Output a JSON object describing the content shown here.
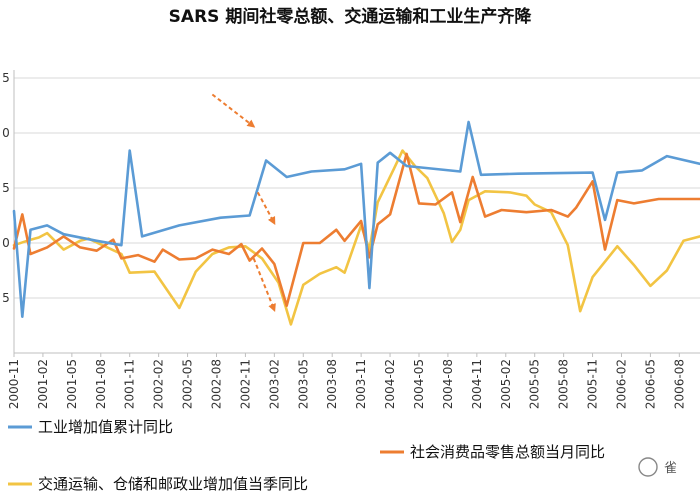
{
  "chart_data": {
    "type": "line",
    "title": "SARS 期间社零总额、交通运输和工业生产齐降",
    "x_tick_labels": [
      "2000-11",
      "2001-02",
      "2001-05",
      "2001-08",
      "2001-11",
      "2002-02",
      "2002-05",
      "2002-08",
      "2002-11",
      "2003-02",
      "2003-05",
      "2003-08",
      "2003-11",
      "2004-02",
      "2004-05",
      "2004-08",
      "2004-11",
      "2005-02",
      "2005-05",
      "2005-08",
      "2005-11",
      "2006-02",
      "2006-05",
      "2006-08"
    ],
    "y_tick_labels": [
      "",
      "5",
      "0",
      "5",
      "0",
      "5"
    ],
    "ylim": [
      0,
      25
    ],
    "grid": true,
    "series": [
      {
        "name": "工业增加值累计同比",
        "color": "#5b9bd5",
        "values": [
          [
            0,
            12.9
          ],
          [
            2,
            3.3
          ],
          [
            4,
            11.2
          ],
          [
            8,
            11.6
          ],
          [
            12,
            10.8
          ],
          [
            20,
            10.2
          ],
          [
            26,
            9.8
          ],
          [
            28,
            18.4
          ],
          [
            31,
            10.6
          ],
          [
            40,
            11.6
          ],
          [
            50,
            12.3
          ],
          [
            57,
            12.5
          ],
          [
            61,
            17.5
          ],
          [
            66,
            16.0
          ],
          [
            72,
            16.5
          ],
          [
            80,
            16.7
          ],
          [
            84,
            17.2
          ],
          [
            86,
            5.9
          ],
          [
            88,
            17.3
          ],
          [
            91,
            18.2
          ],
          [
            95,
            17.0
          ],
          [
            108,
            16.5
          ],
          [
            110,
            21.0
          ],
          [
            113,
            16.2
          ],
          [
            122,
            16.3
          ],
          [
            140,
            16.4
          ],
          [
            143,
            12.1
          ],
          [
            146,
            16.4
          ],
          [
            152,
            16.6
          ],
          [
            158,
            17.9
          ],
          [
            166,
            17.2
          ]
        ]
      },
      {
        "name": "社会消费品零售总额当月同比",
        "color": "#ed7d31",
        "values": [
          [
            0,
            9.5
          ],
          [
            2,
            12.6
          ],
          [
            4,
            9.0
          ],
          [
            8,
            9.6
          ],
          [
            12,
            10.6
          ],
          [
            16,
            9.6
          ],
          [
            20,
            9.3
          ],
          [
            24,
            10.3
          ],
          [
            26,
            8.6
          ],
          [
            30,
            8.9
          ],
          [
            34,
            8.3
          ],
          [
            36,
            9.4
          ],
          [
            40,
            8.5
          ],
          [
            44,
            8.6
          ],
          [
            48,
            9.4
          ],
          [
            52,
            9.0
          ],
          [
            55,
            9.9
          ],
          [
            57,
            8.4
          ],
          [
            60,
            9.5
          ],
          [
            63,
            8.1
          ],
          [
            66,
            4.3
          ],
          [
            70,
            10.0
          ],
          [
            74,
            10.0
          ],
          [
            78,
            11.2
          ],
          [
            80,
            10.2
          ],
          [
            84,
            12.0
          ],
          [
            86,
            8.7
          ],
          [
            88,
            11.7
          ],
          [
            91,
            12.6
          ],
          [
            95,
            18.1
          ],
          [
            98,
            13.6
          ],
          [
            102,
            13.5
          ],
          [
            106,
            14.6
          ],
          [
            108,
            11.9
          ],
          [
            111,
            16.0
          ],
          [
            114,
            12.4
          ],
          [
            118,
            13.0
          ],
          [
            124,
            12.8
          ],
          [
            130,
            13.0
          ],
          [
            134,
            12.4
          ],
          [
            136,
            13.2
          ],
          [
            140,
            15.6
          ],
          [
            143,
            9.4
          ],
          [
            146,
            13.9
          ],
          [
            150,
            13.6
          ],
          [
            156,
            14.0
          ],
          [
            166,
            14.0
          ]
        ]
      },
      {
        "name": "交通运输、仓储和邮政业增加值当季同比",
        "color": "#f2c443",
        "values": [
          [
            0,
            9.8
          ],
          [
            4,
            10.3
          ],
          [
            6,
            10.5
          ],
          [
            8,
            10.9
          ],
          [
            12,
            9.4
          ],
          [
            16,
            10.2
          ],
          [
            18,
            10.4
          ],
          [
            22,
            9.7
          ],
          [
            26,
            9.0
          ],
          [
            28,
            7.3
          ],
          [
            34,
            7.4
          ],
          [
            40,
            4.1
          ],
          [
            44,
            7.4
          ],
          [
            48,
            9.0
          ],
          [
            52,
            9.6
          ],
          [
            56,
            9.7
          ],
          [
            60,
            8.6
          ],
          [
            64,
            6.4
          ],
          [
            67,
            2.6
          ],
          [
            70,
            6.2
          ],
          [
            74,
            7.2
          ],
          [
            78,
            7.8
          ],
          [
            80,
            7.3
          ],
          [
            84,
            11.6
          ],
          [
            86,
            9.4
          ],
          [
            88,
            13.7
          ],
          [
            92,
            16.8
          ],
          [
            94,
            18.4
          ],
          [
            97,
            17.0
          ],
          [
            100,
            15.9
          ],
          [
            104,
            12.7
          ],
          [
            106,
            10.1
          ],
          [
            108,
            11.2
          ],
          [
            110,
            13.9
          ],
          [
            114,
            14.7
          ],
          [
            120,
            14.6
          ],
          [
            124,
            14.3
          ],
          [
            126,
            13.5
          ],
          [
            130,
            12.8
          ],
          [
            134,
            9.8
          ],
          [
            137,
            3.8
          ],
          [
            140,
            6.9
          ],
          [
            146,
            9.7
          ],
          [
            150,
            8.0
          ],
          [
            154,
            6.1
          ],
          [
            158,
            7.5
          ],
          [
            162,
            10.2
          ],
          [
            166,
            10.6
          ]
        ]
      }
    ],
    "annotations": [
      {
        "type": "dashed-arrow",
        "color": "#ed7d31",
        "from": [
          48,
          23.5
        ],
        "to": [
          58,
          20.6
        ]
      },
      {
        "type": "dashed-arrow",
        "color": "#ed7d31",
        "from": [
          59,
          14.6
        ],
        "to": [
          63,
          11.8
        ]
      },
      {
        "type": "dashed-arrow",
        "color": "#ed7d31",
        "from": [
          58,
          8.6
        ],
        "to": [
          63,
          3.9
        ]
      }
    ]
  },
  "watermark_text": "雀"
}
